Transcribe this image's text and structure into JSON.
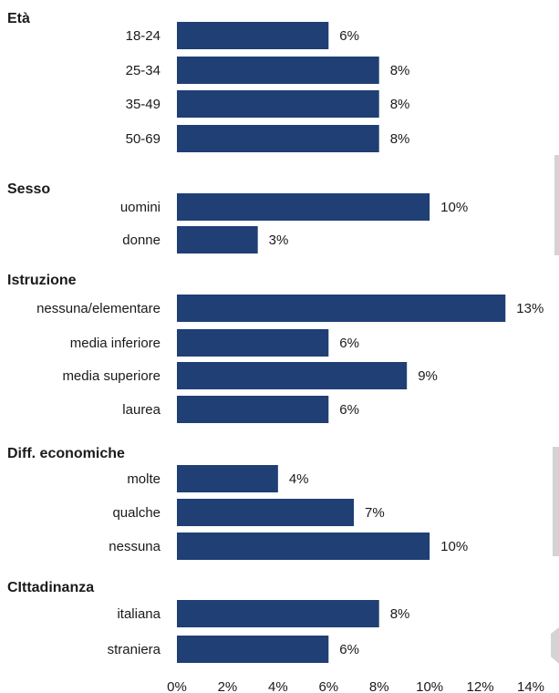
{
  "chart_data": {
    "type": "bar",
    "orientation": "horizontal",
    "bar_color": "#1f3f75",
    "xlim": [
      0,
      14
    ],
    "x_ticks": [
      "0%",
      "2%",
      "4%",
      "6%",
      "8%",
      "10%",
      "12%",
      "14%"
    ],
    "grid": false,
    "groups": [
      {
        "title": "Età",
        "bars": [
          {
            "category": "18-24",
            "value": 6,
            "label": "6%"
          },
          {
            "category": "25-34",
            "value": 8,
            "label": "8%"
          },
          {
            "category": "35-49",
            "value": 8,
            "label": "8%"
          },
          {
            "category": "50-69",
            "value": 8,
            "label": "8%"
          }
        ]
      },
      {
        "title": "Sesso",
        "bars": [
          {
            "category": "uomini",
            "value": 10,
            "label": "10%"
          },
          {
            "category": "donne",
            "value": 3.2,
            "label": "3%"
          }
        ]
      },
      {
        "title": "Istruzione",
        "bars": [
          {
            "category": "nessuna/elementare",
            "value": 13,
            "label": "13%"
          },
          {
            "category": "media inferiore",
            "value": 6,
            "label": "6%"
          },
          {
            "category": "media superiore",
            "value": 9.1,
            "label": "9%"
          },
          {
            "category": "laurea",
            "value": 6,
            "label": "6%"
          }
        ]
      },
      {
        "title": "Diff. economiche",
        "bars": [
          {
            "category": "molte",
            "value": 4,
            "label": "4%"
          },
          {
            "category": "qualche",
            "value": 7,
            "label": "7%"
          },
          {
            "category": "nessuna",
            "value": 10,
            "label": "10%"
          }
        ]
      },
      {
        "title": "CIttadinanza",
        "bars": [
          {
            "category": "italiana",
            "value": 8,
            "label": "8%"
          },
          {
            "category": "straniera",
            "value": 6,
            "label": "6%"
          }
        ]
      }
    ]
  }
}
